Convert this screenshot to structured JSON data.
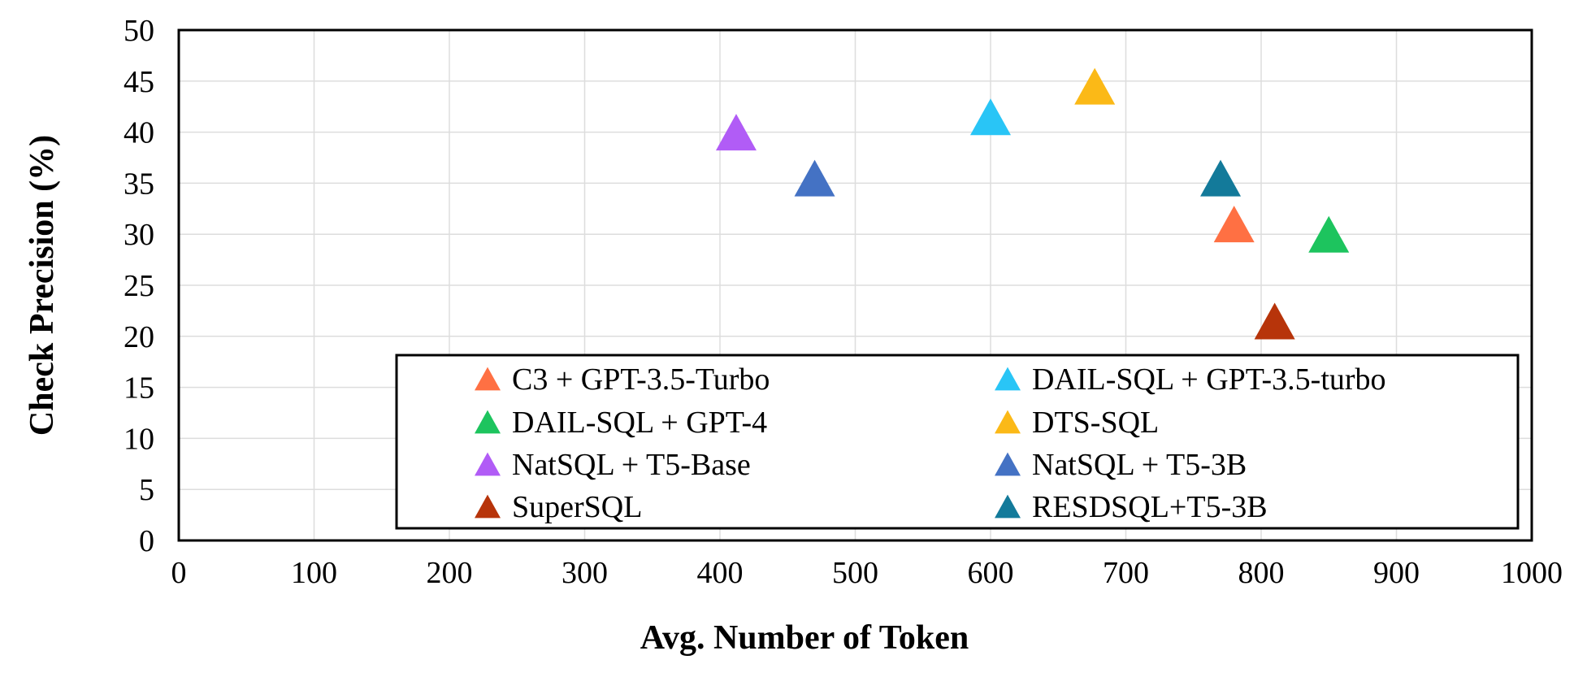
{
  "chart_data": {
    "type": "scatter",
    "title": "",
    "xlabel": "Avg. Number of Token",
    "ylabel": "Check  Precision (%)",
    "xlim": [
      0,
      1000
    ],
    "ylim": [
      0,
      50
    ],
    "x_ticks": [
      0,
      100,
      200,
      300,
      400,
      500,
      600,
      700,
      800,
      900,
      1000
    ],
    "y_ticks": [
      0,
      5,
      10,
      15,
      20,
      25,
      30,
      35,
      40,
      45,
      50
    ],
    "grid": true,
    "marker": "triangle",
    "legend_position": "bottom-center",
    "series": [
      {
        "name": "C3 + GPT-3.5-Turbo",
        "x": 780,
        "y": 31,
        "color": "#FF7043"
      },
      {
        "name": "DAIL-SQL + GPT-3.5-turbo",
        "x": 600,
        "y": 41.5,
        "color": "#29C5F6"
      },
      {
        "name": "DAIL-SQL + GPT-4",
        "x": 850,
        "y": 30,
        "color": "#1DC45E"
      },
      {
        "name": "DTS-SQL",
        "x": 677,
        "y": 44.5,
        "color": "#FBB917"
      },
      {
        "name": "NatSQL + T5-Base",
        "x": 412,
        "y": 40,
        "color": "#B15CF6"
      },
      {
        "name": "NatSQL + T5-3B",
        "x": 470,
        "y": 35.5,
        "color": "#4472C4"
      },
      {
        "name": "SuperSQL",
        "x": 810,
        "y": 21.5,
        "color": "#B7340A"
      },
      {
        "name": "RESDSQL+T5-3B",
        "x": 770,
        "y": 35.5,
        "color": "#137A9A"
      }
    ]
  }
}
